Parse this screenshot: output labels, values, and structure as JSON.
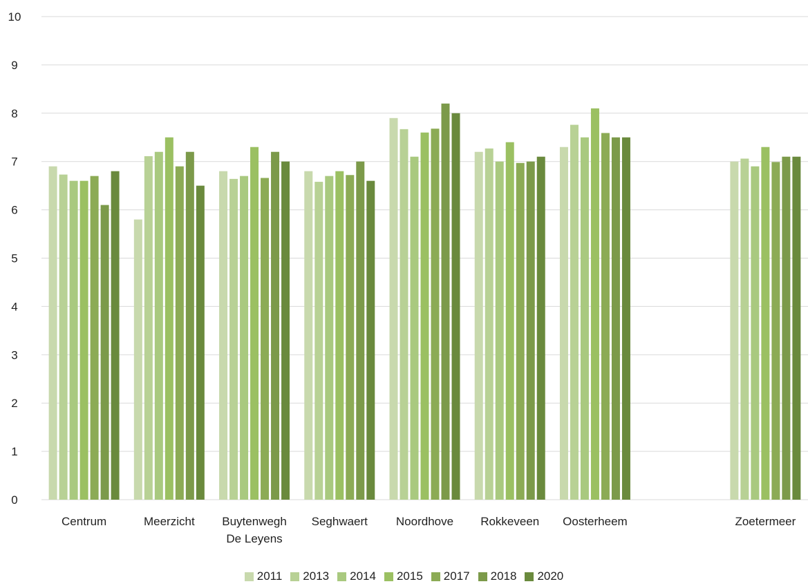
{
  "chart_data": {
    "type": "bar",
    "title": "",
    "xlabel": "",
    "ylabel": "",
    "ylim": [
      0,
      10
    ],
    "yticks": [
      "0",
      "1",
      "2",
      "3",
      "4",
      "5",
      "6",
      "7",
      "8",
      "9",
      "10"
    ],
    "grid": true,
    "legend_position": "bottom",
    "categories": [
      [
        "Centrum"
      ],
      [
        "Meerzicht"
      ],
      [
        "Buytenwegh",
        "De Leyens"
      ],
      [
        "Seghwaert"
      ],
      [
        "Noordhove"
      ],
      [
        "Rokkeveen"
      ],
      [
        "Oosterheem"
      ],
      [
        ""
      ],
      [
        "Zoetermeer"
      ]
    ],
    "series": [
      {
        "name": "2011",
        "color": "#c8d9ad",
        "values": [
          6.9,
          5.8,
          6.8,
          6.8,
          7.9,
          7.2,
          7.3,
          null,
          7.0
        ]
      },
      {
        "name": "2013",
        "color": "#b8d195",
        "values": [
          6.73,
          7.11,
          6.64,
          6.58,
          7.67,
          7.27,
          7.76,
          null,
          7.06
        ]
      },
      {
        "name": "2014",
        "color": "#a9c97f",
        "values": [
          6.6,
          7.2,
          6.7,
          6.7,
          7.1,
          7.0,
          7.5,
          null,
          6.9
        ]
      },
      {
        "name": "2015",
        "color": "#9bc062",
        "values": [
          6.6,
          7.5,
          7.3,
          6.8,
          7.6,
          7.4,
          8.1,
          null,
          7.3
        ]
      },
      {
        "name": "2017",
        "color": "#8cab55",
        "values": [
          6.7,
          6.9,
          6.66,
          6.72,
          7.68,
          6.97,
          7.59,
          null,
          6.99
        ]
      },
      {
        "name": "2018",
        "color": "#7c9a4a",
        "values": [
          6.1,
          7.2,
          7.2,
          7.0,
          8.2,
          7.0,
          7.5,
          null,
          7.1
        ]
      },
      {
        "name": "2020",
        "color": "#6a8a3d",
        "values": [
          6.8,
          6.5,
          7.0,
          6.6,
          8.0,
          7.1,
          7.5,
          null,
          7.1
        ]
      }
    ]
  }
}
